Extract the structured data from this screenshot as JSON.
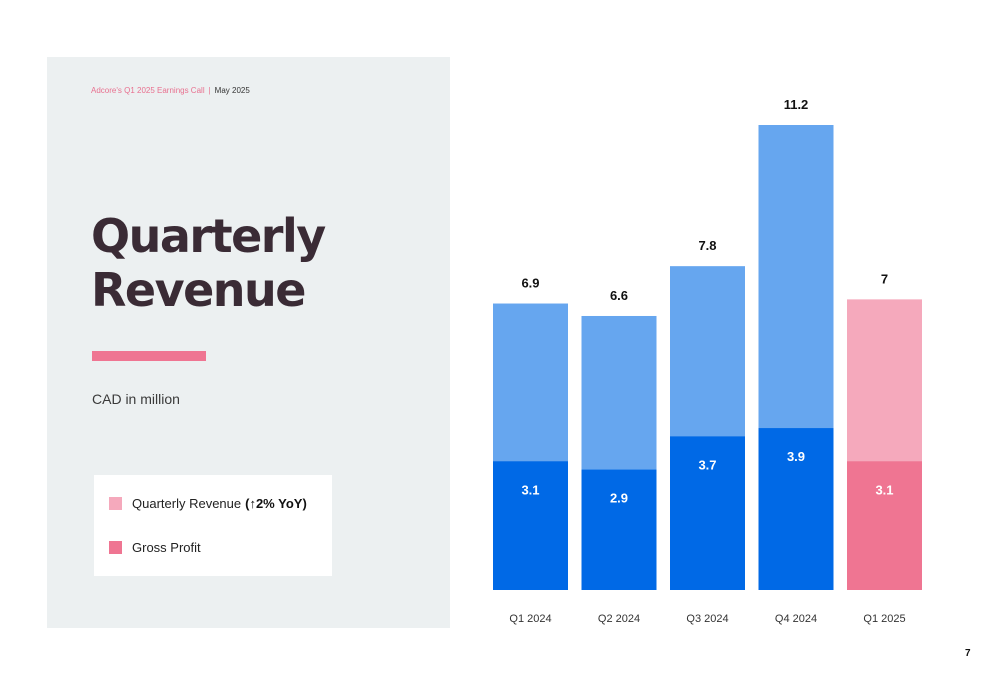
{
  "header": {
    "event": "Adcore's Q1 2025 Earnings Call",
    "separator": "|",
    "date": "May 2025"
  },
  "title": {
    "line1": "Quarterly",
    "line2": "Revenue"
  },
  "subtitle": "CAD in million",
  "legend": {
    "items": [
      {
        "label": "Quarterly Revenue",
        "note": "(↑2% YoY)",
        "color": "#f5a9bc"
      },
      {
        "label": "Gross Profit",
        "note": "",
        "color": "#ef7592"
      }
    ]
  },
  "page_number": "7",
  "colors": {
    "revenue": "#66a6ef",
    "profit": "#0069e6",
    "revenue_highlight": "#f5a9bc",
    "profit_highlight": "#ef7592",
    "accent": "#ef7592",
    "panel_bg": "#ecf0f1",
    "title_text": "#3a2b35"
  },
  "chart_data": {
    "type": "bar",
    "stacking": "overlay",
    "categories": [
      "Q1 2024",
      "Q2 2024",
      "Q3 2024",
      "Q4 2024",
      "Q1 2025"
    ],
    "series": [
      {
        "name": "Quarterly Revenue",
        "values": [
          6.9,
          6.6,
          7.8,
          11.2,
          7
        ]
      },
      {
        "name": "Gross Profit",
        "values": [
          3.1,
          2.9,
          3.7,
          3.9,
          3.1
        ]
      }
    ],
    "data_labels": {
      "revenue": [
        "6.9",
        "6.6",
        "7.8",
        "11.2",
        "7"
      ],
      "profit": [
        "3.1",
        "2.9",
        "3.7",
        "3.9",
        "3.1"
      ]
    },
    "highlight_category": "Q1 2025",
    "ylim": [
      0,
      11.2
    ],
    "grid": false,
    "legend_position": "left",
    "title": "",
    "xlabel": "",
    "ylabel": ""
  }
}
